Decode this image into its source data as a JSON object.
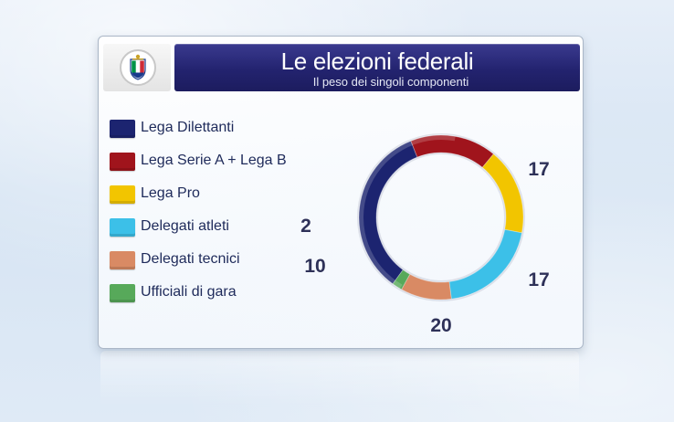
{
  "header": {
    "title": "Le elezioni federali",
    "subtitle": "Il peso dei singoli componenti"
  },
  "logo": {
    "icon": "figc-crest-icon",
    "colors": [
      "#1a3a8c",
      "#009246",
      "#ffffff",
      "#ce2b37",
      "#c9a227"
    ]
  },
  "chart_data": {
    "type": "donut",
    "title": "Le elezioni federali",
    "subtitle": "Il peso dei singoli componenti",
    "legend_position": "left",
    "unit": "%",
    "series": [
      {
        "name": "Lega Dilettanti",
        "value": 34,
        "color": "#1c2470"
      },
      {
        "name": "Lega Serie A + Lega B",
        "value": 17,
        "color": "#a0141c"
      },
      {
        "name": "Lega Pro",
        "value": 17,
        "color": "#f2c500"
      },
      {
        "name": "Delegati atleti",
        "value": 20,
        "color": "#3cc0e8"
      },
      {
        "name": "Delegati tecnici",
        "value": 10,
        "color": "#d98a64"
      },
      {
        "name": "Ufficiali di gara",
        "value": 2,
        "color": "#57a95a"
      }
    ]
  }
}
